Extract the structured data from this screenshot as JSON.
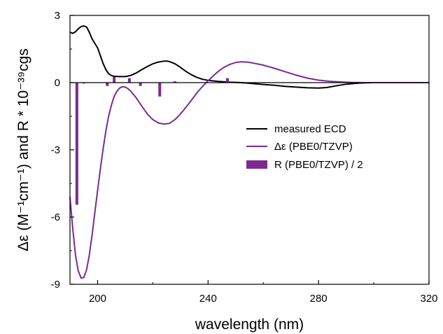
{
  "chart_data": {
    "type": "line",
    "xlabel": "wavelength (nm)",
    "ylabel": "Δε (M⁻¹cm⁻¹) and R * 10⁻³⁹cgs",
    "xlim": [
      190,
      320
    ],
    "ylim": [
      -9,
      3
    ],
    "x_ticks": [
      200,
      240,
      280,
      320
    ],
    "x_tick_labels": [
      "200",
      "240",
      "280",
      "320"
    ],
    "y_ticks": [
      3,
      0,
      -3,
      -6,
      -9
    ],
    "y_tick_labels": [
      "3",
      "0",
      "-3",
      "-6",
      "-9"
    ],
    "grid": false,
    "legend_position": "right-middle",
    "series": [
      {
        "name": "measured ECD",
        "kind": "line",
        "color": "#000000",
        "points": [
          [
            190,
            2.25
          ],
          [
            191,
            2.2
          ],
          [
            192,
            2.27
          ],
          [
            193,
            2.4
          ],
          [
            194,
            2.5
          ],
          [
            195,
            2.53
          ],
          [
            196,
            2.48
          ],
          [
            197,
            2.25
          ],
          [
            198,
            1.95
          ],
          [
            199,
            1.75
          ],
          [
            200,
            1.55
          ],
          [
            201,
            1.2
          ],
          [
            202,
            0.85
          ],
          [
            203,
            0.58
          ],
          [
            204,
            0.4
          ],
          [
            205,
            0.32
          ],
          [
            206,
            0.28
          ],
          [
            208,
            0.27
          ],
          [
            210,
            0.27
          ],
          [
            212,
            0.32
          ],
          [
            214,
            0.43
          ],
          [
            216,
            0.58
          ],
          [
            218,
            0.72
          ],
          [
            220,
            0.84
          ],
          [
            222,
            0.92
          ],
          [
            224,
            0.96
          ],
          [
            225,
            0.96
          ],
          [
            226,
            0.94
          ],
          [
            228,
            0.84
          ],
          [
            230,
            0.68
          ],
          [
            232,
            0.5
          ],
          [
            234,
            0.35
          ],
          [
            236,
            0.23
          ],
          [
            238,
            0.15
          ],
          [
            240,
            0.1
          ],
          [
            244,
            0.05
          ],
          [
            248,
            0.02
          ],
          [
            252,
            0.0
          ],
          [
            256,
            -0.04
          ],
          [
            260,
            -0.08
          ],
          [
            264,
            -0.12
          ],
          [
            268,
            -0.17
          ],
          [
            272,
            -0.2
          ],
          [
            276,
            -0.23
          ],
          [
            280,
            -0.24
          ],
          [
            283,
            -0.22
          ],
          [
            286,
            -0.15
          ],
          [
            290,
            -0.07
          ],
          [
            295,
            -0.02
          ],
          [
            300,
            0.0
          ],
          [
            320,
            0.0
          ]
        ]
      },
      {
        "name": "Δε (PBE0/TZVP)",
        "kind": "line",
        "color": "#7b2b8f",
        "points": [
          [
            190,
            -5.1
          ],
          [
            191,
            -6.5
          ],
          [
            192,
            -7.7
          ],
          [
            193,
            -8.4
          ],
          [
            194,
            -8.72
          ],
          [
            195,
            -8.7
          ],
          [
            196,
            -8.35
          ],
          [
            197,
            -7.7
          ],
          [
            198,
            -6.8
          ],
          [
            199,
            -5.8
          ],
          [
            200,
            -4.8
          ],
          [
            201,
            -3.85
          ],
          [
            202,
            -2.95
          ],
          [
            203,
            -2.15
          ],
          [
            204,
            -1.5
          ],
          [
            205,
            -1.0
          ],
          [
            206,
            -0.62
          ],
          [
            207,
            -0.38
          ],
          [
            208,
            -0.24
          ],
          [
            209,
            -0.18
          ],
          [
            210,
            -0.2
          ],
          [
            211,
            -0.27
          ],
          [
            212,
            -0.38
          ],
          [
            214,
            -0.68
          ],
          [
            216,
            -1.05
          ],
          [
            218,
            -1.4
          ],
          [
            220,
            -1.65
          ],
          [
            222,
            -1.8
          ],
          [
            224,
            -1.85
          ],
          [
            226,
            -1.82
          ],
          [
            228,
            -1.65
          ],
          [
            230,
            -1.4
          ],
          [
            232,
            -1.1
          ],
          [
            234,
            -0.78
          ],
          [
            236,
            -0.45
          ],
          [
            238,
            -0.17
          ],
          [
            240,
            0.08
          ],
          [
            242,
            0.32
          ],
          [
            244,
            0.53
          ],
          [
            246,
            0.7
          ],
          [
            248,
            0.82
          ],
          [
            250,
            0.9
          ],
          [
            252,
            0.93
          ],
          [
            254,
            0.92
          ],
          [
            256,
            0.88
          ],
          [
            260,
            0.78
          ],
          [
            264,
            0.64
          ],
          [
            268,
            0.48
          ],
          [
            272,
            0.33
          ],
          [
            276,
            0.2
          ],
          [
            280,
            0.11
          ],
          [
            284,
            0.06
          ],
          [
            288,
            0.03
          ],
          [
            292,
            0.01
          ],
          [
            296,
            0.0
          ],
          [
            320,
            0.0
          ]
        ]
      },
      {
        "name": "R (PBE0/TZVP) / 2",
        "kind": "bar",
        "color": "#7b2b8f",
        "bars": [
          [
            192.5,
            -5.45
          ],
          [
            195,
            -0.04
          ],
          [
            203.5,
            -0.15
          ],
          [
            206,
            0.25
          ],
          [
            211.5,
            0.2
          ],
          [
            215.5,
            -0.15
          ],
          [
            222.5,
            -0.62
          ],
          [
            228,
            0.06
          ],
          [
            247,
            0.2
          ],
          [
            305,
            0.03
          ],
          [
            309,
            0.03
          ],
          [
            312,
            0.02
          ]
        ]
      }
    ]
  }
}
